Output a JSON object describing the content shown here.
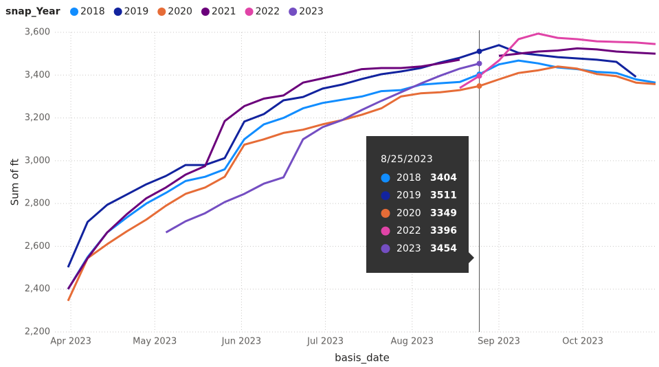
{
  "chart_data": {
    "type": "line",
    "legend_title": "snap_Year",
    "y_label": "Sum of ft",
    "x_label": "basis_date",
    "x": [
      "3/31/2023",
      "4/7/2023",
      "4/14/2023",
      "4/21/2023",
      "4/28/2023",
      "5/5/2023",
      "5/12/2023",
      "5/19/2023",
      "5/26/2023",
      "6/2/2023",
      "6/9/2023",
      "6/16/2023",
      "6/23/2023",
      "6/30/2023",
      "7/7/2023",
      "7/14/2023",
      "7/21/2023",
      "7/28/2023",
      "8/4/2023",
      "8/11/2023",
      "8/18/2023",
      "8/25/2023",
      "9/1/2023",
      "9/8/2023",
      "9/15/2023",
      "9/22/2023",
      "9/29/2023",
      "10/6/2023",
      "10/13/2023",
      "10/20/2023",
      "10/27/2023"
    ],
    "xlim": [
      "3/31/2023",
      "10/27/2023"
    ],
    "xticks": [
      {
        "value": "4/1/2023",
        "label": "Apr 2023"
      },
      {
        "value": "5/1/2023",
        "label": "May 2023"
      },
      {
        "value": "6/1/2023",
        "label": "Jun 2023"
      },
      {
        "value": "7/1/2023",
        "label": "Jul 2023"
      },
      {
        "value": "8/1/2023",
        "label": "Aug 2023"
      },
      {
        "value": "9/1/2023",
        "label": "Sep 2023"
      },
      {
        "value": "10/1/2023",
        "label": "Oct 2023"
      }
    ],
    "ylim": [
      2200,
      3600
    ],
    "yticks": [
      {
        "value": 2200,
        "label": "2,200"
      },
      {
        "value": 2400,
        "label": "2,400"
      },
      {
        "value": 2600,
        "label": "2,600"
      },
      {
        "value": 2800,
        "label": "2,800"
      },
      {
        "value": 3000,
        "label": "3,000"
      },
      {
        "value": 3200,
        "label": "3,200"
      },
      {
        "value": 3400,
        "label": "3,400"
      },
      {
        "value": 3600,
        "label": "3,600"
      }
    ],
    "grid": true,
    "series": [
      {
        "name": "2018",
        "color": "#118DFF",
        "values": [
          2400,
          2550,
          2665,
          2735,
          2800,
          2850,
          2905,
          2925,
          2960,
          3100,
          3170,
          3200,
          3245,
          3270,
          3285,
          3300,
          3325,
          3330,
          3355,
          3362,
          3368,
          3404,
          3450,
          3468,
          3455,
          3436,
          3428,
          3415,
          3410,
          3380,
          3365
        ]
      },
      {
        "name": "2019",
        "color": "#12239E",
        "values": [
          2502,
          2714,
          2794,
          2842,
          2890,
          2929,
          2980,
          2980,
          3012,
          3183,
          3218,
          3282,
          3298,
          3337,
          3356,
          3382,
          3404,
          3417,
          3433,
          3459,
          3481,
          3511,
          3540,
          3504,
          3494,
          3484,
          3478,
          3472,
          3462,
          3392,
          null
        ]
      },
      {
        "name": "2020",
        "color": "#E66C37",
        "values": [
          2345,
          2545,
          2610,
          2670,
          2725,
          2790,
          2845,
          2875,
          2925,
          3075,
          3100,
          3130,
          3145,
          3170,
          3190,
          3215,
          3245,
          3300,
          3315,
          3320,
          3330,
          3349,
          3380,
          3410,
          3422,
          3440,
          3430,
          3405,
          3395,
          3365,
          3358
        ]
      },
      {
        "name": "2021",
        "color": "#6B007B",
        "values": [
          2400,
          2545,
          2665,
          2750,
          2825,
          2875,
          2935,
          2975,
          3185,
          3255,
          3290,
          3305,
          3365,
          3385,
          3405,
          3428,
          3433,
          3433,
          3440,
          3455,
          3472,
          null,
          3490,
          3500,
          3510,
          3515,
          3525,
          3520,
          3510,
          3505,
          3500
        ]
      },
      {
        "name": "2022",
        "color": "#E044A7",
        "values": [
          null,
          null,
          null,
          null,
          null,
          null,
          null,
          null,
          null,
          null,
          null,
          null,
          null,
          null,
          null,
          null,
          null,
          null,
          null,
          null,
          3340,
          3396,
          3468,
          3568,
          3594,
          3574,
          3568,
          3558,
          3555,
          3552,
          3545
        ]
      },
      {
        "name": "2023",
        "color": "#744EC2",
        "values": [
          null,
          null,
          null,
          null,
          null,
          2665,
          2717,
          2755,
          2807,
          2845,
          2893,
          2922,
          3100,
          3157,
          3190,
          3237,
          3280,
          3320,
          3360,
          3397,
          3430,
          3454,
          null,
          null,
          null,
          null,
          null,
          null,
          null,
          null,
          null
        ]
      }
    ],
    "tooltip_index": 21
  }
}
